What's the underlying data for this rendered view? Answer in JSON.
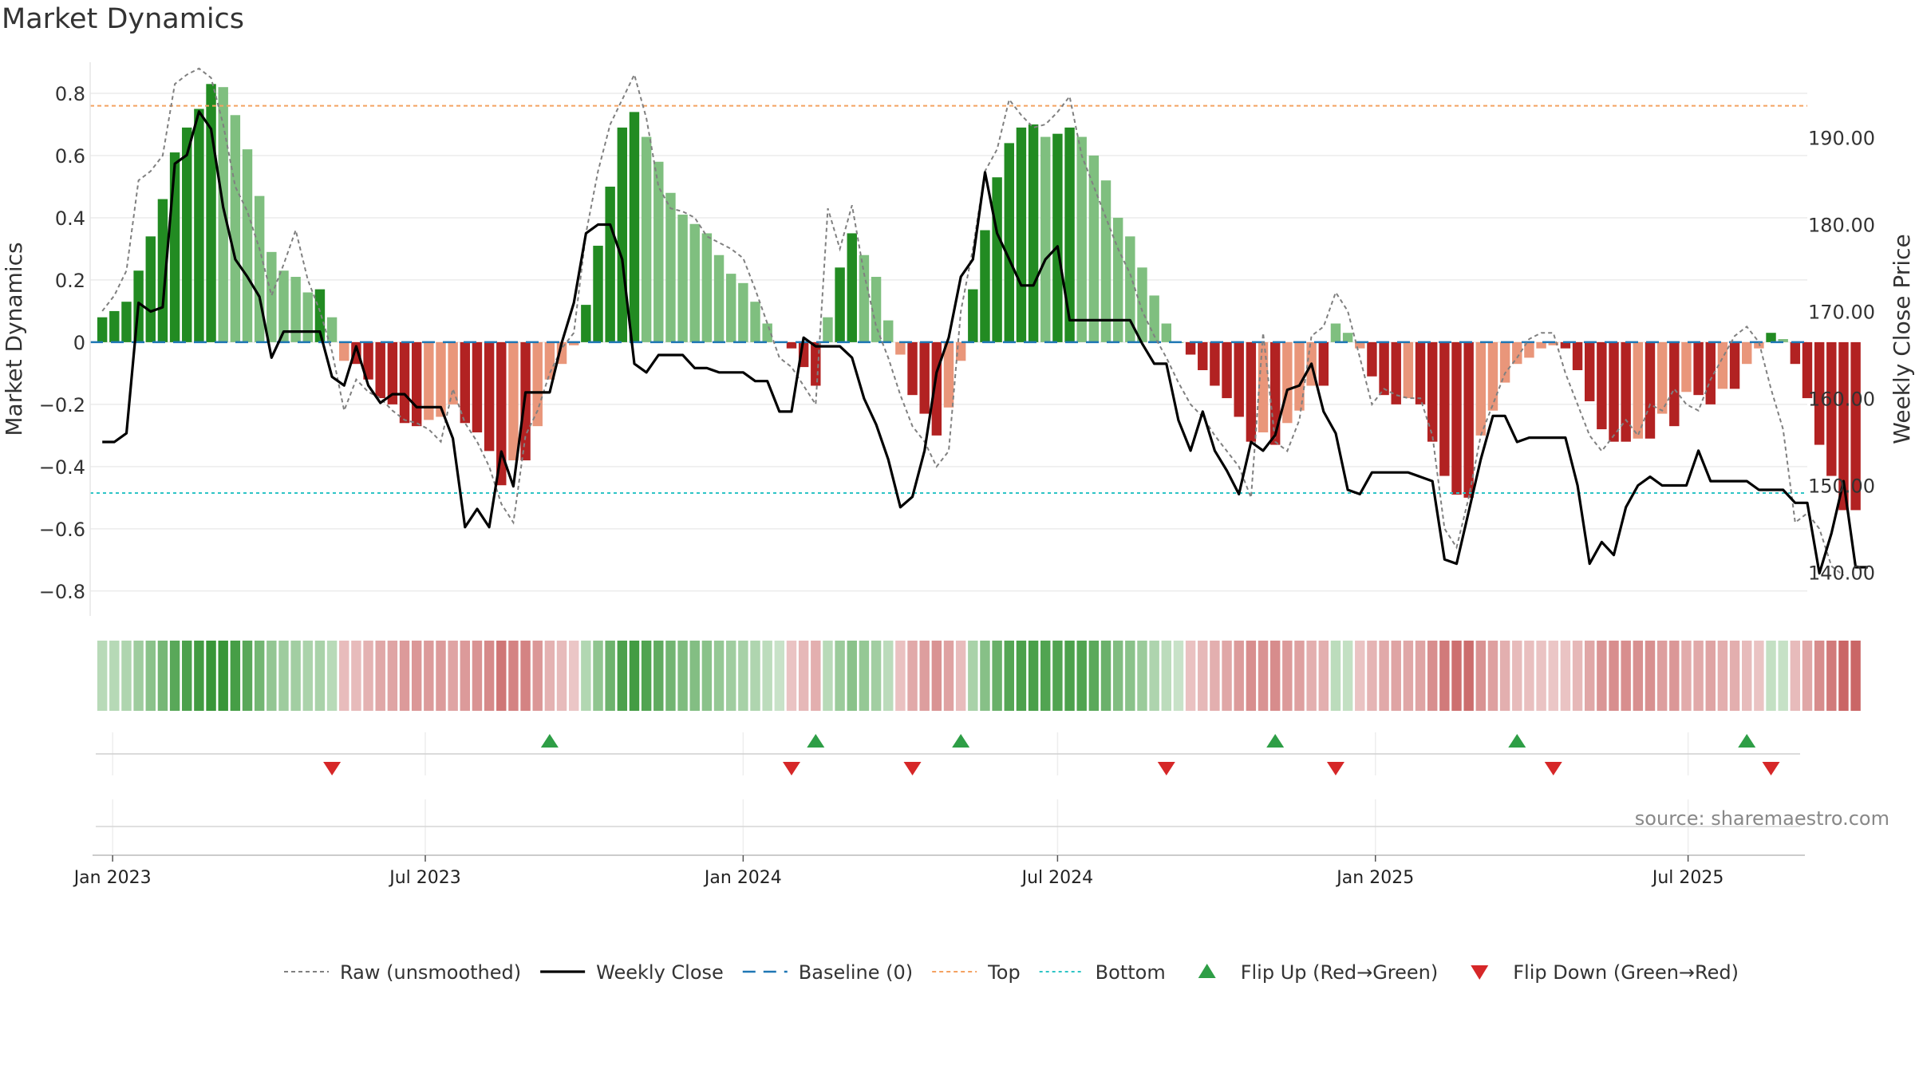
{
  "title": "Market Dynamics",
  "source": "source: sharemaestro.com",
  "colors": {
    "green_strong": "#228b22",
    "green_light": "#7fbf7f",
    "red_strong": "#b22222",
    "red_light": "#e9967a",
    "raw": "#808080",
    "close": "#000000",
    "baseline": "#1f77b4",
    "top": "#f4a261",
    "bottom": "#2ec4c6",
    "flip_up": "#2e9e46",
    "flip_down": "#d62728"
  },
  "chart_data": {
    "type": "bar",
    "title": "Market Dynamics",
    "ylabel": "Market Dynamics",
    "y2label": "Weekly Close Price",
    "ylim": [
      -0.88,
      0.9
    ],
    "y2lim": [
      135.0,
      198.67
    ],
    "yticks": [
      "0.8",
      "0.6",
      "0.4",
      "0.2",
      "0",
      "−0.2",
      "−0.4",
      "−0.6",
      "−0.8"
    ],
    "y2ticks": [
      "190.00",
      "180.00",
      "170.00",
      "160.00",
      "150.00",
      "140.00"
    ],
    "x_start": "2022-12-19",
    "x_end": "2025-09-08",
    "x_ticks": [
      {
        "date": "2023-01-01",
        "label": "Jan 2023"
      },
      {
        "date": "2023-07-01",
        "label": "Jul 2023"
      },
      {
        "date": "2024-01-01",
        "label": "Jan 2024"
      },
      {
        "date": "2024-07-01",
        "label": "Jul 2024"
      },
      {
        "date": "2025-01-01",
        "label": "Jan 2025"
      },
      {
        "date": "2025-07-01",
        "label": "Jul 2025"
      }
    ],
    "first_week": "2022-12-26",
    "top_level": 0.76,
    "bottom_level": -0.485,
    "baseline": 0,
    "momentum": [
      0.08,
      0.1,
      0.13,
      0.23,
      0.34,
      0.46,
      0.61,
      0.69,
      0.75,
      0.83,
      0.82,
      0.73,
      0.62,
      0.47,
      0.29,
      0.23,
      0.21,
      0.16,
      0.17,
      0.08,
      -0.06,
      -0.07,
      -0.12,
      -0.18,
      -0.2,
      -0.26,
      -0.27,
      -0.25,
      -0.24,
      -0.2,
      -0.26,
      -0.29,
      -0.35,
      -0.46,
      -0.38,
      -0.38,
      -0.27,
      -0.12,
      -0.07,
      -0.01,
      0.12,
      0.31,
      0.5,
      0.69,
      0.74,
      0.66,
      0.58,
      0.48,
      0.41,
      0.38,
      0.35,
      0.28,
      0.22,
      0.19,
      0.13,
      0.06,
      0.0,
      -0.02,
      -0.08,
      -0.14,
      0.08,
      0.24,
      0.35,
      0.28,
      0.21,
      0.07,
      -0.04,
      -0.17,
      -0.23,
      -0.3,
      -0.21,
      -0.06,
      0.17,
      0.36,
      0.53,
      0.64,
      0.69,
      0.7,
      0.66,
      0.67,
      0.69,
      0.66,
      0.6,
      0.52,
      0.4,
      0.34,
      0.24,
      0.15,
      0.06,
      0.0,
      -0.04,
      -0.09,
      -0.14,
      -0.18,
      -0.24,
      -0.32,
      -0.29,
      -0.33,
      -0.26,
      -0.22,
      -0.14,
      -0.14,
      0.06,
      0.03,
      -0.02,
      -0.11,
      -0.17,
      -0.2,
      -0.18,
      -0.2,
      -0.32,
      -0.43,
      -0.49,
      -0.5,
      -0.3,
      -0.22,
      -0.13,
      -0.07,
      -0.05,
      -0.02,
      -0.01,
      -0.02,
      -0.09,
      -0.19,
      -0.28,
      -0.32,
      -0.32,
      -0.31,
      -0.31,
      -0.23,
      -0.27,
      -0.16,
      -0.17,
      -0.2,
      -0.15,
      -0.15,
      -0.07,
      -0.02,
      0.03,
      0.01,
      -0.07,
      -0.18,
      -0.33,
      -0.43,
      -0.54,
      -0.54
    ],
    "raw": [
      0.1,
      0.15,
      0.23,
      0.52,
      0.55,
      0.6,
      0.83,
      0.86,
      0.88,
      0.85,
      0.7,
      0.5,
      0.42,
      0.3,
      0.15,
      0.25,
      0.36,
      0.2,
      0.1,
      -0.03,
      -0.22,
      -0.12,
      -0.16,
      -0.18,
      -0.22,
      -0.25,
      -0.26,
      -0.28,
      -0.32,
      -0.15,
      -0.26,
      -0.32,
      -0.4,
      -0.52,
      -0.58,
      -0.3,
      -0.22,
      -0.1,
      -0.02,
      0.03,
      0.35,
      0.55,
      0.7,
      0.78,
      0.86,
      0.72,
      0.5,
      0.43,
      0.42,
      0.4,
      0.34,
      0.32,
      0.3,
      0.27,
      0.17,
      0.06,
      -0.05,
      -0.08,
      -0.14,
      -0.2,
      0.43,
      0.3,
      0.44,
      0.22,
      0.05,
      -0.05,
      -0.17,
      -0.27,
      -0.32,
      -0.4,
      -0.35,
      0.1,
      0.3,
      0.55,
      0.62,
      0.78,
      0.73,
      0.69,
      0.7,
      0.74,
      0.79,
      0.6,
      0.5,
      0.4,
      0.3,
      0.22,
      0.1,
      0.02,
      -0.05,
      -0.13,
      -0.2,
      -0.24,
      -0.3,
      -0.35,
      -0.4,
      -0.5,
      0.03,
      -0.32,
      -0.35,
      -0.25,
      0.02,
      0.05,
      0.16,
      0.1,
      -0.05,
      -0.2,
      -0.15,
      -0.17,
      -0.18,
      -0.18,
      -0.3,
      -0.6,
      -0.66,
      -0.5,
      -0.3,
      -0.2,
      -0.1,
      -0.05,
      0.01,
      0.03,
      0.03,
      -0.1,
      -0.2,
      -0.3,
      -0.35,
      -0.3,
      -0.25,
      -0.3,
      -0.2,
      -0.22,
      -0.15,
      -0.2,
      -0.22,
      -0.12,
      -0.05,
      0.02,
      0.05,
      0.0,
      -0.15,
      -0.28,
      -0.58,
      -0.55,
      -0.6,
      -0.72,
      -0.75
    ],
    "close": [
      155,
      155,
      156,
      171,
      170,
      170.5,
      187,
      188,
      193,
      191,
      182,
      176,
      174,
      171.7,
      164.7,
      167.7,
      167.7,
      167.7,
      167.7,
      162.5,
      161.5,
      166,
      161.5,
      159.5,
      160.5,
      160.5,
      159,
      159,
      159,
      155.4,
      145.2,
      147.3,
      145.2,
      153.9,
      149.9,
      160.7,
      160.7,
      160.7,
      166.4,
      171,
      179,
      180,
      180,
      176,
      164,
      163,
      165,
      165,
      165,
      163.5,
      163.5,
      163,
      163,
      163,
      162,
      162,
      158.5,
      158.5,
      167,
      166,
      166,
      166,
      164.7,
      160,
      157,
      153,
      147.5,
      148.7,
      154,
      163,
      167,
      174,
      176,
      186,
      179,
      176,
      173,
      173,
      176,
      177.5,
      169,
      169,
      169,
      169,
      169,
      169,
      166.3,
      164,
      164,
      157.5,
      154,
      158.5,
      154,
      151.7,
      149,
      155,
      154,
      155.8,
      161,
      161.5,
      164,
      158.5,
      156,
      149.5,
      149,
      151.5,
      151.5,
      151.5,
      151.5,
      151,
      150.5,
      141.5,
      141,
      147,
      153,
      158,
      158,
      155,
      155.5,
      155.5,
      155.5,
      155.5,
      150,
      141,
      143.5,
      142,
      147.5,
      150,
      151,
      150,
      150,
      150,
      154,
      150.5,
      150.5,
      150.5,
      150.5,
      149.5,
      149.5,
      149.5,
      148,
      148,
      139.9,
      144.5,
      150.5,
      140.6,
      140.6
    ],
    "flip_up_dates": [
      "2023-09-11",
      "2024-02-12",
      "2024-05-06",
      "2024-11-04",
      "2025-03-24",
      "2025-08-04"
    ],
    "flip_down_dates": [
      "2023-05-08",
      "2024-01-29",
      "2024-04-08",
      "2024-09-02",
      "2024-12-09",
      "2025-04-14",
      "2025-08-18"
    ]
  },
  "legend": [
    {
      "key": "raw",
      "label": "Raw (unsmoothed)"
    },
    {
      "key": "close",
      "label": "Weekly Close"
    },
    {
      "key": "baseline",
      "label": "Baseline (0)"
    },
    {
      "key": "top",
      "label": "Top"
    },
    {
      "key": "bottom",
      "label": "Bottom"
    },
    {
      "key": "flip_up",
      "label": "Flip Up (Red→Green)"
    },
    {
      "key": "flip_down",
      "label": "Flip Down (Green→Red)"
    }
  ]
}
